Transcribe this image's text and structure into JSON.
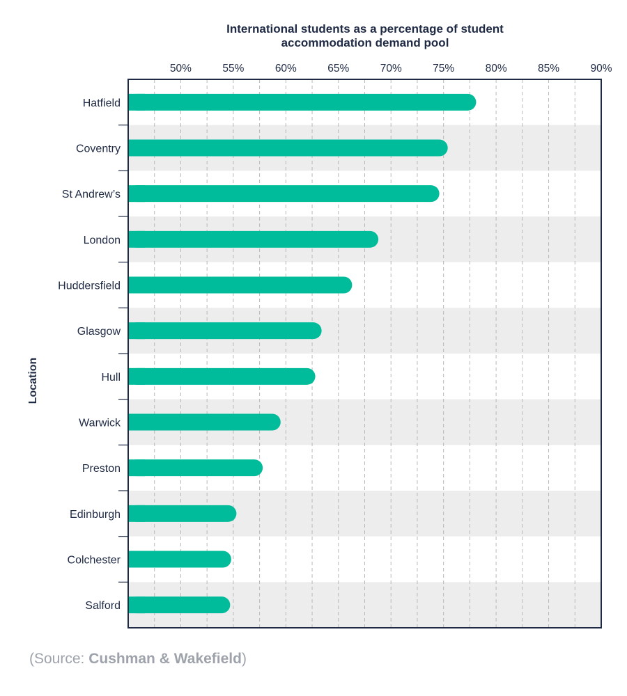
{
  "chart_data": {
    "type": "bar",
    "orientation": "horizontal",
    "title_lines": [
      "International students as a percentage of student",
      "accommodation demand pool"
    ],
    "xlabel": "",
    "ylabel": "Location",
    "xlim": [
      45,
      90
    ],
    "x_ticks": [
      50,
      55,
      60,
      65,
      70,
      75,
      80,
      85,
      90
    ],
    "x_tick_labels": [
      "50%",
      "55%",
      "60%",
      "65%",
      "70%",
      "75%",
      "80%",
      "85%",
      "90%"
    ],
    "grid": "vertical dashed at every 2.5%",
    "categories": [
      "Hatfield",
      "Coventry",
      "St Andrew’s",
      "London",
      "Huddersfield",
      "Glasgow",
      "Hull",
      "Warwick",
      "Preston",
      "Edinburgh",
      "Colchester",
      "Salford"
    ],
    "values": [
      78.1,
      75.4,
      74.6,
      68.8,
      66.3,
      63.4,
      62.8,
      59.5,
      57.8,
      55.3,
      54.8,
      54.7
    ],
    "colors": {
      "bar": "#00bc9a",
      "band": "#ededed",
      "axis": "#1f2a44",
      "grid": "#b8b8b8",
      "text": "#1f2a44"
    }
  },
  "source": {
    "prefix": "(Source: ",
    "name": "Cushman & Wakefield",
    "suffix": ")"
  }
}
